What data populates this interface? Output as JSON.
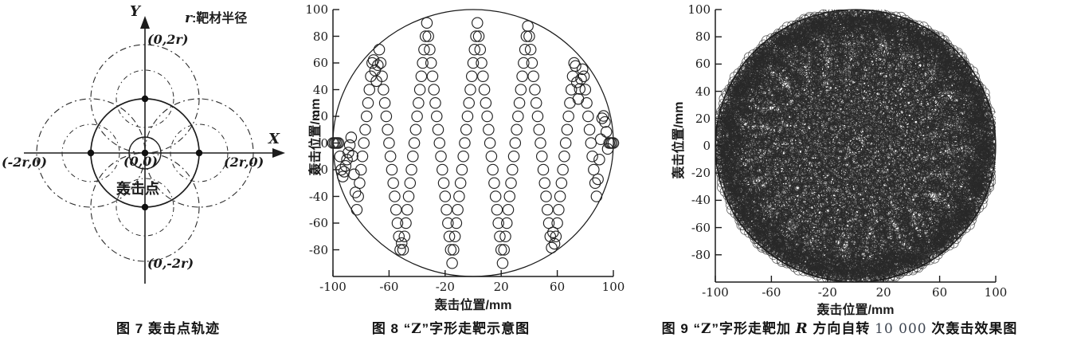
{
  "page": {
    "background": "#ffffff",
    "ink": "#1c1c1c"
  },
  "figure7": {
    "caption": "图 7  轰击点轨迹",
    "legend": {
      "var": "r",
      "rest": ":靶材半径"
    },
    "axis": {
      "x": "X",
      "y": "Y"
    },
    "labels": {
      "top": "(0,2r)",
      "right": "(2r,0)",
      "left": "(-2r,0)",
      "bottom": "(0,-2r)",
      "origin": "(0,0)",
      "origin_name": "轰击点"
    }
  },
  "figure8": {
    "caption_parts": {
      "pre": "图 8  “",
      "z": "Z",
      "post": "”字形走靶示意图"
    }
  },
  "figure9": {
    "caption_parts": {
      "pre": "图 9  “",
      "z": "Z",
      "mid": "”字形走靶加 ",
      "r_var": "R",
      "mid2": " 方向自转 ",
      "count": "10 000",
      "post": " 次轰击效果图"
    }
  },
  "chart_data": [
    {
      "id": "fig8",
      "type": "scatter",
      "title": "图 8 “Z”字形走靶示意图",
      "xlabel": "轰击位置/mm",
      "ylabel": "轰击位置/mm",
      "xlim": [
        -100,
        100
      ],
      "ylim": [
        -100,
        100
      ],
      "grid": false,
      "xticks": [
        -100,
        -60,
        -20,
        20,
        60,
        100
      ],
      "xtick_labels": [
        "-100",
        "-60",
        "-20",
        "20",
        "60",
        "100"
      ],
      "yticks": [
        100,
        80,
        60,
        40,
        20,
        0,
        -20,
        -40,
        -60,
        -80
      ],
      "ytick_labels": [
        "100",
        "80",
        "60",
        "40",
        "20",
        "0",
        "-20",
        "-40",
        "-60",
        "-80"
      ],
      "boundary_circle": {
        "cx": 0,
        "cy": 0,
        "r": 100
      },
      "marker": {
        "shape": "open-circle",
        "radius_mm": 1.9
      },
      "pattern": {
        "kind": "triangle-wave-zigzag",
        "x_step_mm": 1,
        "y_step_per_x_mm": 10,
        "peak_x_mm": 3,
        "period_mm": 36,
        "amplitude_mm": 90,
        "clip_radius_mm": 97
      }
    },
    {
      "id": "fig9",
      "type": "scatter",
      "title": "图 9 “Z”字形走靶加 R 方向自转 10 000 次轰击效果图",
      "xlabel": "轰击位置/mm",
      "ylabel": "轰击位置/mm",
      "xlim": [
        -100,
        100
      ],
      "ylim": [
        -100,
        100
      ],
      "grid": false,
      "xticks": [
        -100,
        -60,
        -20,
        20,
        60,
        100
      ],
      "xtick_labels": [
        "-100",
        "-60",
        "-20",
        "20",
        "60",
        "100"
      ],
      "yticks": [
        100,
        80,
        60,
        40,
        20,
        0,
        -20,
        -40,
        -60,
        -80
      ],
      "ytick_labels": [
        "100",
        "80",
        "60",
        "40",
        "20",
        "0",
        "-20",
        "-40",
        "-60",
        "-80"
      ],
      "boundary_circle": {
        "cx": 0,
        "cy": 0,
        "r": 100
      },
      "marker": {
        "shape": "open-circle",
        "radius_mm": 1.7
      },
      "pattern": {
        "kind": "zigzag-with-rotation",
        "n_points": 10000,
        "x_step_mm": 1,
        "y_step_per_x_mm": 10,
        "period_mm": 36,
        "amplitude_mm": 90,
        "clip_radius_mm": 97,
        "rotation_step_rad": 2.0
      }
    }
  ]
}
